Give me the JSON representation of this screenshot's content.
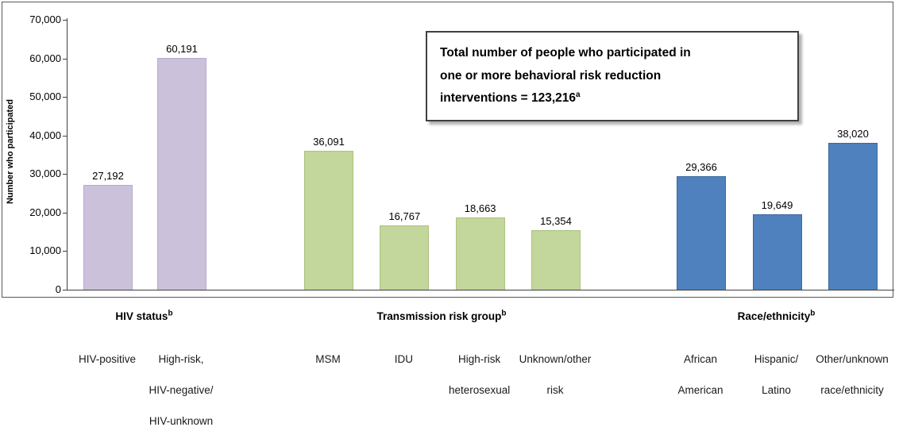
{
  "chart_data": {
    "type": "bar",
    "title": "",
    "ylabel": "Number who participated",
    "xlabel": "",
    "ylim": [
      0,
      70000
    ],
    "grid": false,
    "legend": "none",
    "yticks": [
      {
        "value": 70000,
        "label": "70,000"
      },
      {
        "value": 60000,
        "label": "60,000"
      },
      {
        "value": 50000,
        "label": "50,000"
      },
      {
        "value": 40000,
        "label": "40,000"
      },
      {
        "value": 30000,
        "label": "30,000"
      },
      {
        "value": 20000,
        "label": "20,000"
      },
      {
        "value": 10000,
        "label": "10,000"
      },
      {
        "value": 0,
        "label": "0"
      }
    ],
    "annotation": {
      "lines": [
        "Total number of people who participated  in",
        "one or more behavioral risk reduction",
        "interventions = 123,216"
      ],
      "footnote_mark": "a"
    },
    "groups": [
      {
        "label": "HIV status",
        "footnote_mark": "b",
        "color": "#CCC1DA",
        "border_color": "#B7ABCC",
        "bars": [
          {
            "category_lines": [
              "HIV-positive"
            ],
            "value": 27192,
            "value_label": "27,192"
          },
          {
            "category_lines": [
              "High-risk,",
              "HIV-negative/",
              "HIV-unknown"
            ],
            "value": 60191,
            "value_label": "60,191"
          }
        ]
      },
      {
        "label": "Transmission risk group",
        "footnote_mark": "b",
        "color": "#C3D69B",
        "border_color": "#ABC27F",
        "bars": [
          {
            "category_lines": [
              "MSM"
            ],
            "value": 36091,
            "value_label": "36,091"
          },
          {
            "category_lines": [
              "IDU"
            ],
            "value": 16767,
            "value_label": "16,767"
          },
          {
            "category_lines": [
              "High-risk",
              "heterosexual"
            ],
            "value": 18663,
            "value_label": "18,663"
          },
          {
            "category_lines": [
              "Unknown/other",
              "risk"
            ],
            "value": 15354,
            "value_label": "15,354"
          }
        ]
      },
      {
        "label": "Race/ethnicity",
        "footnote_mark": "b",
        "color": "#4E81BD",
        "border_color": "#3A699E",
        "bars": [
          {
            "category_lines": [
              "African",
              "American"
            ],
            "value": 29366,
            "value_label": "29,366"
          },
          {
            "category_lines": [
              "Hispanic/",
              "Latino"
            ],
            "value": 19649,
            "value_label": "19,649"
          },
          {
            "category_lines": [
              "Other/unknown",
              "race/ethnicity"
            ],
            "value": 38020,
            "value_label": "38,020"
          }
        ]
      }
    ]
  }
}
